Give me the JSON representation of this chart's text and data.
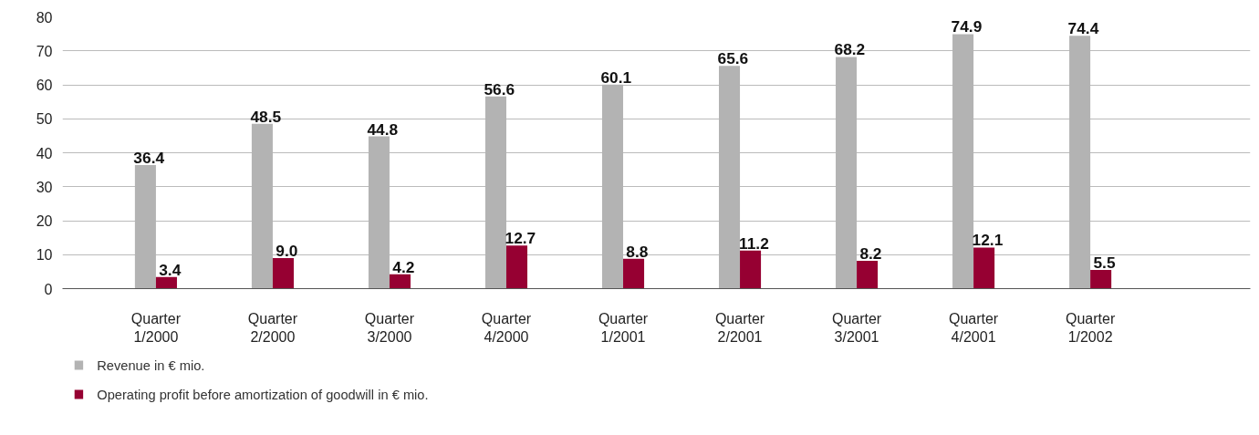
{
  "chart_data": {
    "type": "bar",
    "categories": [
      "Quarter\n1/2000",
      "Quarter\n2/2000",
      "Quarter\n3/2000",
      "Quarter\n4/2000",
      "Quarter\n1/2001",
      "Quarter\n2/2001",
      "Quarter\n3/2001",
      "Quarter\n4/2001",
      "Quarter\n1/2002"
    ],
    "series": [
      {
        "name": "Revenue in € mio.",
        "color": "#b3b3b3",
        "values": [
          36.4,
          48.5,
          44.8,
          56.6,
          60.1,
          65.6,
          68.2,
          74.9,
          74.4
        ],
        "value_labels": [
          "36.4",
          "48.5",
          "44.8",
          "56.6",
          "60.1",
          "65.6",
          "68.2",
          "74.9",
          "74.4"
        ]
      },
      {
        "name": "Operating profit before amortization of goodwill in € mio.",
        "color": "#960032",
        "values": [
          3.4,
          9.0,
          4.2,
          12.7,
          8.8,
          11.2,
          8.2,
          12.1,
          5.5
        ],
        "value_labels": [
          "3.4",
          "9.0",
          "4.2",
          "12.7",
          "8.8",
          "11.2",
          "8.2",
          "12.1",
          "5.5"
        ]
      }
    ],
    "ylim": [
      0,
      80
    ],
    "yticks": [
      0,
      10,
      20,
      30,
      40,
      50,
      60,
      70,
      80
    ],
    "grid": "y",
    "legend": "bottom",
    "data_labels": true
  }
}
